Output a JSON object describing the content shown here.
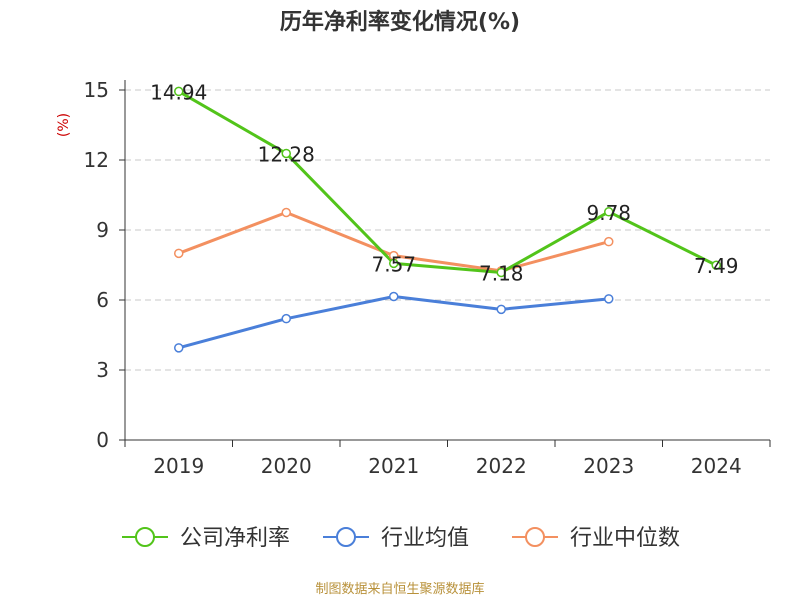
{
  "chart_data": {
    "type": "line",
    "title": "历年净利率变化情况(%)",
    "ylabel": "(%)",
    "xlabel": "",
    "categories": [
      "2019",
      "2020",
      "2021",
      "2022",
      "2023",
      "2024"
    ],
    "ylim": [
      0,
      15
    ],
    "yticks": [
      0,
      3,
      6,
      9,
      12,
      15
    ],
    "grid": true,
    "legend_position": "bottom",
    "series": [
      {
        "name": "公司净利率",
        "color": "#52c41a",
        "values": [
          14.94,
          12.28,
          7.57,
          7.18,
          9.78,
          7.49
        ],
        "labels": [
          "14.94",
          "12.28",
          "7.57",
          "7.18",
          "9.78",
          "7.49"
        ]
      },
      {
        "name": "行业均值",
        "color": "#4a7fd9",
        "values": [
          3.95,
          5.2,
          6.15,
          5.6,
          6.05,
          null
        ]
      },
      {
        "name": "行业中位数",
        "color": "#f39060",
        "values": [
          8.0,
          9.75,
          7.9,
          7.25,
          8.5,
          null
        ]
      }
    ]
  },
  "source": "制图数据来自恒生聚源数据库"
}
